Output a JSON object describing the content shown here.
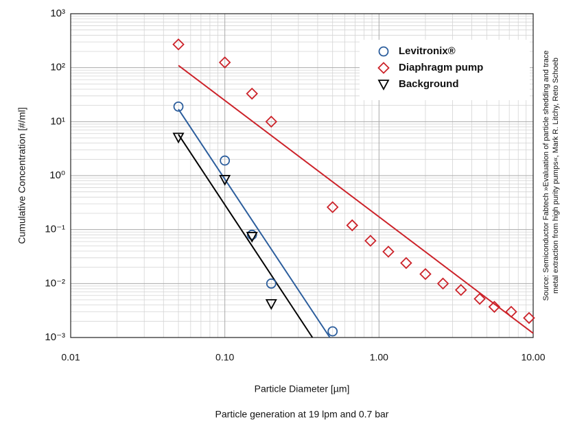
{
  "chart_data": {
    "type": "scatter",
    "x_label": "Particle Diameter [µm]",
    "y_label": "Cumulative Concentration [#/ml]",
    "caption": "Particle generation at 19 lpm and 0.7 bar",
    "source": [
      "Source: Semiconductor Fabtech »Evaluation of particle shedding and trace",
      "metal extraction from high purity pumps«, Mark R. Litchy, Reto Schoeb"
    ],
    "x_log": true,
    "y_log": true,
    "grid": true,
    "legend": "upper-right",
    "xlim": [
      0.01,
      10
    ],
    "ylim": [
      0.001,
      1000
    ],
    "xticks": [
      0.01,
      {
        "value": 0.1,
        "label": "0.10"
      },
      {
        "value": 1,
        "label": "1.00"
      },
      {
        "value": 10,
        "label": "10.00"
      }
    ],
    "yticks": [
      {
        "value": 0.001,
        "label": "10⁻³"
      },
      {
        "value": 0.01,
        "label": "10⁻²"
      },
      {
        "value": 0.1,
        "label": "10⁻¹"
      },
      {
        "value": 1,
        "label": "10⁰"
      },
      {
        "value": 10,
        "label": "10¹"
      },
      {
        "value": 100,
        "label": "10²"
      },
      {
        "value": 1000,
        "label": "10³"
      }
    ],
    "series": [
      {
        "name": "Levitronix®",
        "color": "#2b5d9c",
        "marker": "circle",
        "x": [
          0.05,
          0.1,
          0.15,
          0.2,
          0.5
        ],
        "values": [
          19,
          1.9,
          0.08,
          0.01,
          0.0013
        ]
      },
      {
        "name": "Diaphragm pump",
        "color": "#cc2229",
        "marker": "diamond",
        "x": [
          0.05,
          0.1,
          0.15,
          0.2,
          0.5,
          0.67,
          0.88,
          1.15,
          1.5,
          2,
          2.6,
          3.4,
          4.5,
          5.6,
          7.2,
          9.4
        ],
        "values": [
          270,
          125,
          33,
          10,
          0.26,
          0.12,
          0.062,
          0.039,
          0.024,
          0.015,
          0.01,
          0.0076,
          0.0052,
          0.0037,
          0.003,
          0.0023
        ]
      },
      {
        "name": "Background",
        "color": "#000000",
        "marker": "triangle-down",
        "x": [
          0.05,
          0.1,
          0.15,
          0.2
        ],
        "values": [
          5.1,
          0.84,
          0.074,
          0.0042
        ]
      }
    ],
    "fit_lines": [
      {
        "color": "#cc2229",
        "x": [
          0.05,
          10
        ],
        "values": [
          110,
          0.0012
        ]
      },
      {
        "color": "#2b5d9c",
        "x": [
          0.05,
          0.48
        ],
        "values": [
          17,
          0.001
        ]
      },
      {
        "color": "#000000",
        "x": [
          0.05,
          0.37
        ],
        "values": [
          5.8,
          0.001
        ]
      }
    ]
  }
}
